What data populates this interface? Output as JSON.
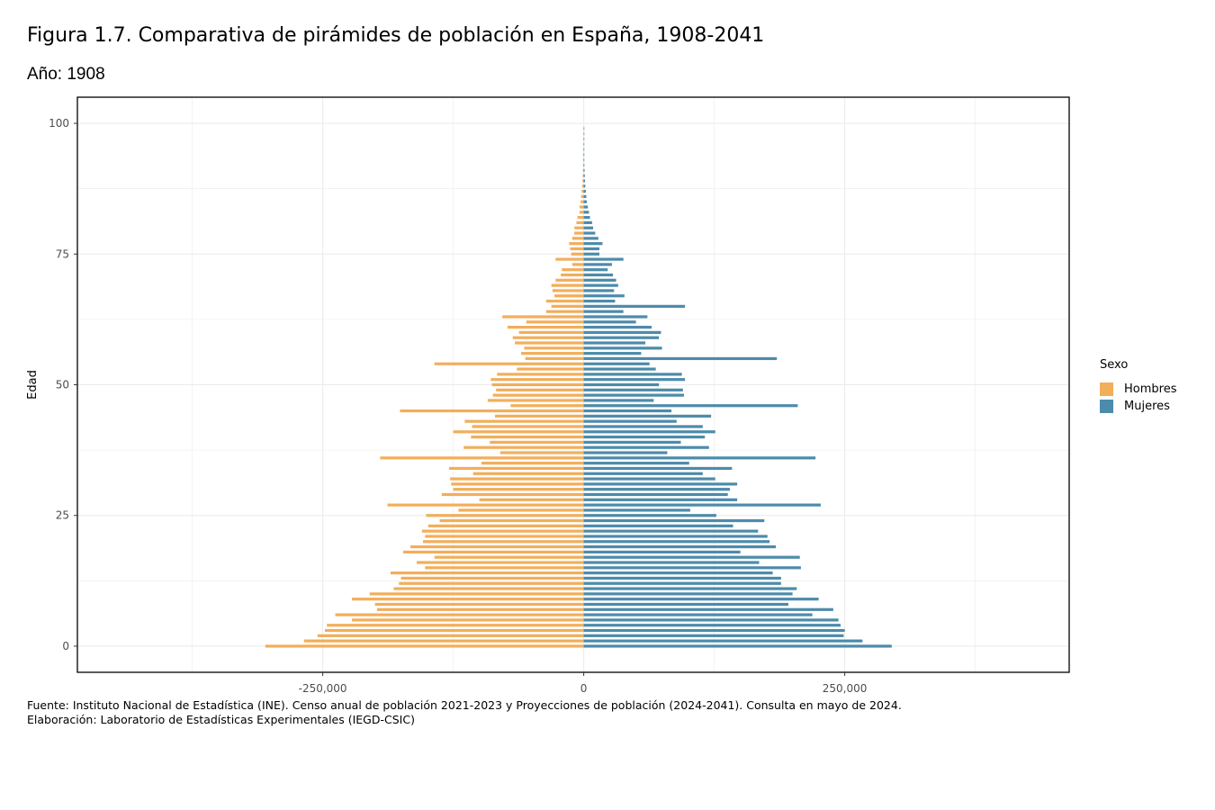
{
  "title": "Figura 1.7. Comparativa de pirámides de población en España, 1908-2041",
  "subtitle": "Año: 1908",
  "legend": {
    "title": "Sexo",
    "items": [
      {
        "label": "Hombres",
        "color": "#F2AE5B"
      },
      {
        "label": "Mujeres",
        "color": "#4D8BAA"
      }
    ]
  },
  "caption": {
    "source": "Fuente: Instituto Nacional de Estadística (INE). Censo anual de población 2021-2023 y Proyecciones de población (2024-2041). Consulta en mayo de 2024.",
    "credit": "Elaboración: Laboratorio de Estadísticas Experimentales (IEGD-CSIC)"
  },
  "chart_data": {
    "type": "bar",
    "orientation": "horizontal",
    "xlim": [
      -485000,
      465000
    ],
    "ylim": [
      -5,
      105
    ],
    "x_ticks": [
      -250000,
      0,
      250000
    ],
    "x_tick_labels": [
      "-250,000",
      "0",
      "250,000"
    ],
    "y_ticks": [
      0,
      25,
      50,
      75,
      100
    ],
    "y_tick_labels": [
      "0",
      "25",
      "50",
      "75",
      "100"
    ],
    "ylabel": "Edad",
    "grid": true,
    "legend_position": "right",
    "ages": [
      0,
      1,
      2,
      3,
      4,
      5,
      6,
      7,
      8,
      9,
      10,
      11,
      12,
      13,
      14,
      15,
      16,
      17,
      18,
      19,
      20,
      21,
      22,
      23,
      24,
      25,
      26,
      27,
      28,
      29,
      30,
      31,
      32,
      33,
      34,
      35,
      36,
      37,
      38,
      39,
      40,
      41,
      42,
      43,
      44,
      45,
      46,
      47,
      48,
      49,
      50,
      51,
      52,
      53,
      54,
      55,
      56,
      57,
      58,
      59,
      60,
      61,
      62,
      63,
      64,
      65,
      66,
      67,
      68,
      69,
      70,
      71,
      72,
      73,
      74,
      75,
      76,
      77,
      78,
      79,
      80,
      81,
      82,
      83,
      84,
      85,
      86,
      87,
      88,
      89,
      90,
      91,
      92,
      93,
      94,
      95,
      96,
      97,
      98,
      99
    ],
    "series": [
      {
        "name": "Hombres",
        "values": [
          -305000,
          -268000,
          -255000,
          -248000,
          -246000,
          -222000,
          -238000,
          -198000,
          -200000,
          -222000,
          -205000,
          -182000,
          -177000,
          -175000,
          -185000,
          -152000,
          -160000,
          -143000,
          -173000,
          -166000,
          -154000,
          -152000,
          -155000,
          -149000,
          -138000,
          -151000,
          -120000,
          -188000,
          -100000,
          -136000,
          -125000,
          -127000,
          -128000,
          -106000,
          -129000,
          -98000,
          -195000,
          -80000,
          -115000,
          -90000,
          -108000,
          -125000,
          -107000,
          -114000,
          -85000,
          -176000,
          -70000,
          -92000,
          -87000,
          -84000,
          -88000,
          -89000,
          -83000,
          -64000,
          -143000,
          -56000,
          -60000,
          -57000,
          -66000,
          -68000,
          -62000,
          -73000,
          -55000,
          -78000,
          -36000,
          -31000,
          -36000,
          -28000,
          -30000,
          -31000,
          -27000,
          -22000,
          -21000,
          -11000,
          -27000,
          -12000,
          -13000,
          -14000,
          -11000,
          -9000,
          -9000,
          -7000,
          -6000,
          -4000,
          -4000,
          -3000,
          -2500,
          -2000,
          -1500,
          -1200,
          -1000,
          -800,
          -600,
          -500,
          -400,
          -300,
          -200,
          -150,
          -100,
          -50
        ]
      },
      {
        "name": "Mujeres",
        "values": [
          295000,
          267000,
          249000,
          250000,
          246000,
          244000,
          219000,
          239000,
          196000,
          225000,
          200000,
          204000,
          189000,
          189000,
          181000,
          208000,
          168000,
          207000,
          150000,
          184000,
          178000,
          176000,
          167000,
          143000,
          173000,
          127000,
          102000,
          227000,
          147000,
          138000,
          140000,
          147000,
          126000,
          114000,
          142000,
          101000,
          222000,
          80000,
          120000,
          93000,
          116000,
          126000,
          114000,
          89000,
          122000,
          84000,
          205000,
          67000,
          96000,
          95000,
          72000,
          97000,
          94000,
          69000,
          63000,
          185000,
          55000,
          75000,
          59000,
          72000,
          74000,
          65000,
          50000,
          61000,
          38000,
          97000,
          30000,
          39000,
          29000,
          33000,
          31000,
          28000,
          23000,
          27000,
          38000,
          15000,
          15000,
          18000,
          14000,
          11000,
          9000,
          8000,
          6000,
          5000,
          4000,
          3000,
          2500,
          2000,
          1500,
          1200,
          1000,
          800,
          600,
          500,
          400,
          300,
          200,
          150,
          100,
          50
        ]
      }
    ]
  }
}
